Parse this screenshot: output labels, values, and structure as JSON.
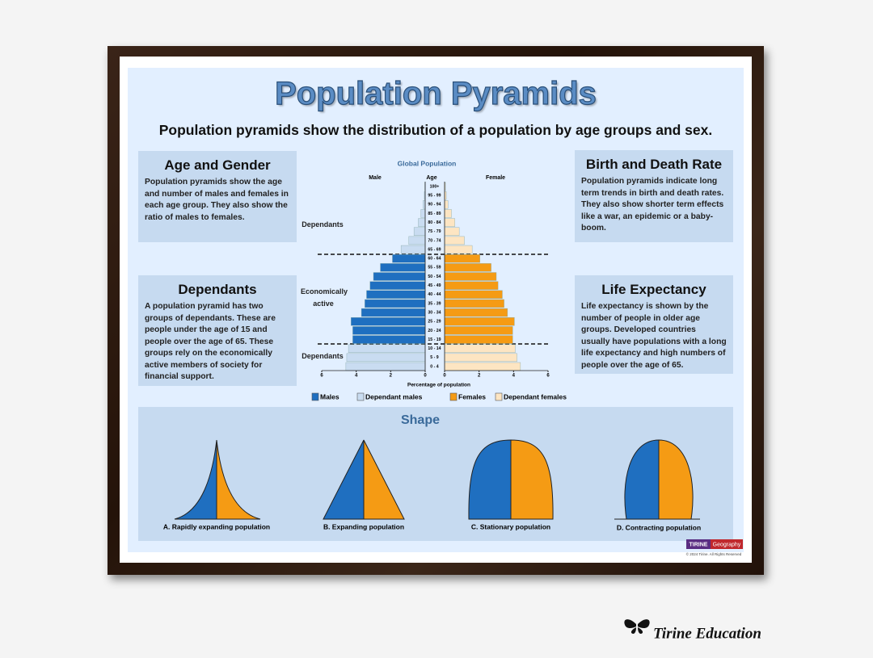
{
  "title": "Population Pyramids",
  "subtitle": "Population pyramids show the distribution of a population by age groups and sex.",
  "panels": [
    {
      "heading": "Age and Gender",
      "text": "Population pyramids show the age and number of males and females in each age group. They also show the ratio of males to females."
    },
    {
      "heading": "Dependants",
      "text": "A population pyramid has two groups of dependants. These are people under the age of 15 and people over the age of 65. These groups rely on the economically active members of society for financial support."
    },
    {
      "heading": "Birth and Death Rate",
      "text": "Population pyramids indicate long term trends in birth and death rates. They also show shorter term effects like a war, an epidemic or a baby-boom."
    },
    {
      "heading": "Life Expectancy",
      "text": "Life expectancy is shown by the number of people in older age groups. Developed countries usually have populations with a long life expectancy and high numbers of people over the age of 65."
    }
  ],
  "chart_data": {
    "type": "population-pyramid",
    "title": "Global Population",
    "male_label": "Male",
    "age_label": "Age",
    "female_label": "Female",
    "xlabel": "Percentage of population",
    "annotations": [
      "Dependants",
      "Economically active",
      "Dependants"
    ],
    "categories": [
      "0 - 4",
      "5 - 9",
      "10 - 14",
      "15 - 19",
      "20 - 24",
      "25 - 29",
      "30 - 34",
      "35 - 39",
      "40 - 44",
      "45 - 49",
      "50 - 54",
      "55 - 59",
      "60 - 64",
      "65 - 69",
      "70 - 74",
      "75 - 79",
      "80 - 84",
      "85 - 89",
      "90 - 94",
      "95 - 99",
      "100+"
    ],
    "xlim": [
      0,
      6
    ],
    "xticks_left": [
      6,
      4,
      2,
      0
    ],
    "xticks_right": [
      0,
      2,
      4,
      6
    ],
    "series": [
      {
        "name": "Males",
        "color": "#1f6fc0",
        "side": "left",
        "values": [
          null,
          null,
          null,
          4.2,
          4.2,
          4.3,
          3.7,
          3.5,
          3.4,
          3.2,
          3.0,
          2.6,
          1.9,
          null,
          null,
          null,
          null,
          null,
          null,
          null,
          null
        ]
      },
      {
        "name": "Dependant males",
        "color": "#c9dcf1",
        "side": "left",
        "values": [
          4.6,
          4.55,
          4.45,
          null,
          null,
          null,
          null,
          null,
          null,
          null,
          null,
          null,
          null,
          1.4,
          0.95,
          0.65,
          0.4,
          0.25,
          0.12,
          0.05,
          0.02
        ]
      },
      {
        "name": "Females",
        "color": "#f59b14",
        "side": "right",
        "values": [
          null,
          null,
          null,
          3.95,
          3.95,
          4.05,
          3.65,
          3.45,
          3.35,
          3.1,
          3.0,
          2.7,
          2.05,
          null,
          null,
          null,
          null,
          null,
          null,
          null,
          null
        ]
      },
      {
        "name": "Dependant females",
        "color": "#fde5c2",
        "side": "right",
        "values": [
          4.4,
          4.2,
          4.1,
          null,
          null,
          null,
          null,
          null,
          null,
          null,
          null,
          null,
          null,
          1.6,
          1.15,
          0.85,
          0.6,
          0.4,
          0.2,
          0.1,
          0.05
        ]
      }
    ]
  },
  "shapes": {
    "title": "Shape",
    "labels": [
      "A. Rapidly expanding population",
      "B. Expanding population",
      "C. Stationary population",
      "D. Contracting population"
    ]
  },
  "footer": {
    "logo_left": "TIRINE",
    "logo_right": "Geography",
    "copyright": "© 2024 Tirine.  All Rights Reserved",
    "signature": "Tirine Education"
  }
}
